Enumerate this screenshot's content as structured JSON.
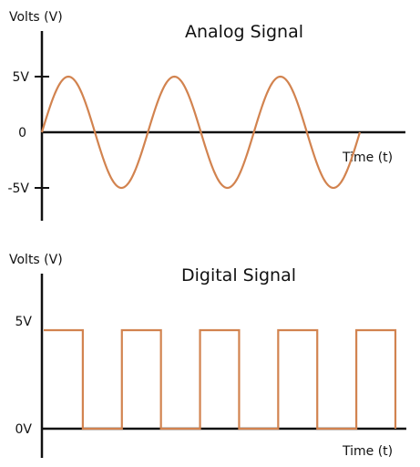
{
  "chart_data": [
    {
      "type": "line",
      "title": "Analog Signal",
      "ylabel": "Volts (V)",
      "xlabel": "Time (t)",
      "y_ticks": [
        "5V",
        "0",
        "-5V"
      ],
      "ylim": [
        -5,
        5
      ],
      "x_range": [
        0,
        3
      ],
      "grid": false,
      "series": [
        {
          "waveform": "sine",
          "amplitude": 5,
          "cycles": 3,
          "x": [
            0,
            0.25,
            0.5,
            0.75,
            1,
            1.25,
            1.5,
            1.75,
            2,
            2.25,
            2.5,
            2.75,
            3
          ],
          "values": [
            0,
            5,
            0,
            -5,
            0,
            5,
            0,
            -5,
            0,
            5,
            0,
            -5,
            0
          ]
        }
      ],
      "color": "#d2834f"
    },
    {
      "type": "line",
      "title": "Digital Signal",
      "ylabel": "Volts (V)",
      "xlabel": "Time (t)",
      "y_ticks": [
        "5V",
        "0V"
      ],
      "ylim": [
        0,
        5
      ],
      "x_range": [
        0,
        9.3
      ],
      "grid": false,
      "series": [
        {
          "waveform": "square",
          "x": [
            0,
            1,
            1,
            2,
            2,
            3,
            3,
            4,
            4,
            5,
            5,
            6,
            6,
            7,
            7,
            8,
            8,
            9,
            9
          ],
          "values": [
            5,
            5,
            0,
            0,
            5,
            5,
            0,
            0,
            5,
            5,
            0,
            0,
            5,
            5,
            0,
            0,
            5,
            5,
            0
          ]
        }
      ],
      "color": "#d2834f"
    }
  ]
}
